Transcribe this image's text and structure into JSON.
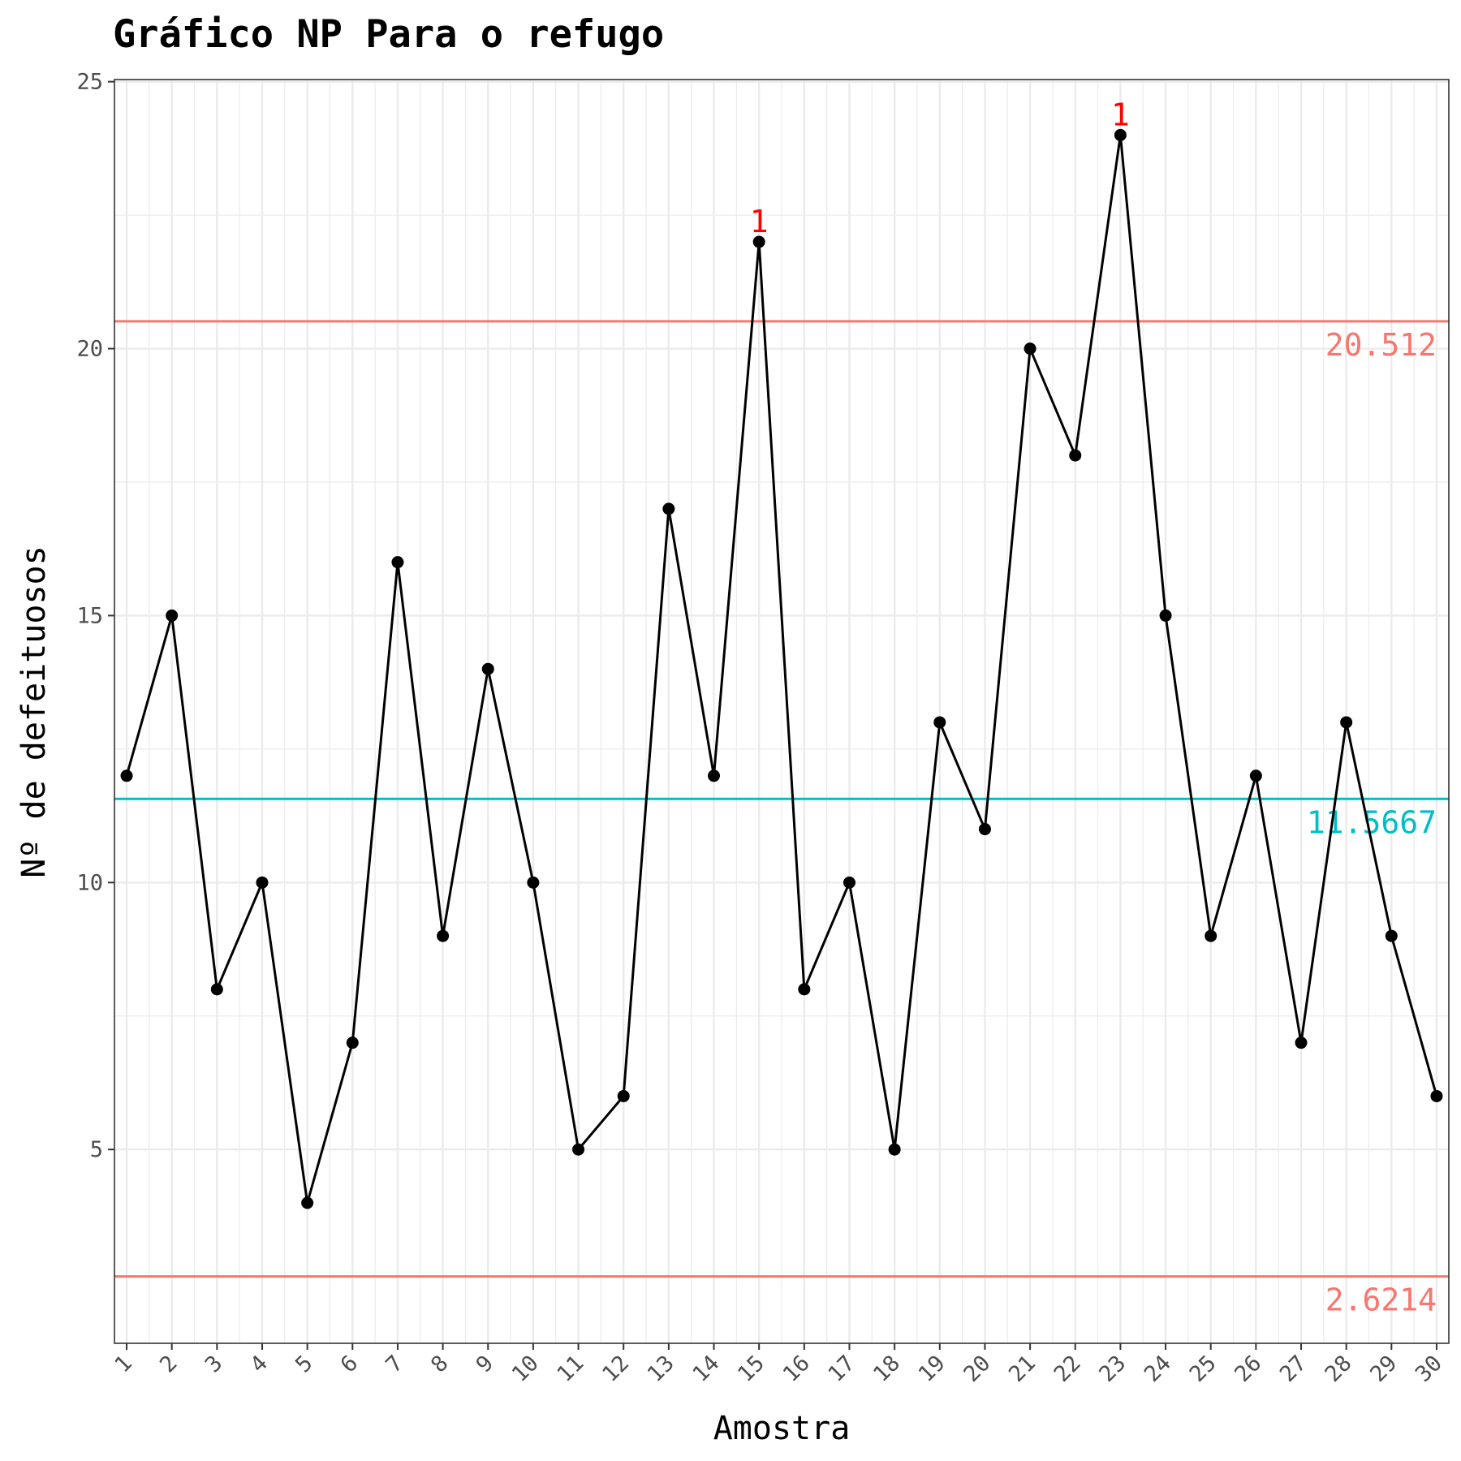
{
  "chart_data": {
    "type": "line",
    "title": "Gráfico NP Para o refugo",
    "xlabel": "Amostra",
    "ylabel": "Nº de defeituosos",
    "xlim": [
      0.73,
      30.27
    ],
    "ylim": [
      1.37,
      25.04
    ],
    "grid": true,
    "y_ticks": [
      5,
      10,
      15,
      20,
      25
    ],
    "x_ticks": [
      "1",
      "2",
      "3",
      "4",
      "5",
      "6",
      "7",
      "8",
      "9",
      "10",
      "11",
      "12",
      "13",
      "14",
      "15",
      "16",
      "17",
      "18",
      "19",
      "20",
      "21",
      "22",
      "23",
      "24",
      "25",
      "26",
      "27",
      "28",
      "29",
      "30"
    ],
    "series": [
      {
        "x": [
          1,
          2,
          3,
          4,
          5,
          6,
          7,
          8,
          9,
          10,
          11,
          12,
          13,
          14,
          15,
          16,
          17,
          18,
          19,
          20,
          21,
          22,
          23,
          24,
          25,
          26,
          27,
          28,
          29,
          30
        ],
        "values": [
          12,
          15,
          8,
          10,
          4,
          7,
          16,
          9,
          14,
          10,
          5,
          6,
          17,
          12,
          22,
          8,
          10,
          5,
          13,
          11,
          20,
          18,
          24,
          15,
          9,
          12,
          7,
          13,
          9,
          6
        ],
        "color": "#000000"
      }
    ],
    "reference_lines": [
      {
        "value": 20.512,
        "label": "20.512",
        "color": "#F8766D"
      },
      {
        "value": 11.5667,
        "label": "11.5667",
        "color": "#00BFC4"
      },
      {
        "value": 2.6214,
        "label": "2.6214",
        "color": "#F8766D"
      }
    ],
    "annotations": [
      {
        "x": 15,
        "y": 22,
        "text": "1",
        "color": "#FF0000"
      },
      {
        "x": 23,
        "y": 24,
        "text": "1",
        "color": "#FF0000"
      }
    ]
  }
}
